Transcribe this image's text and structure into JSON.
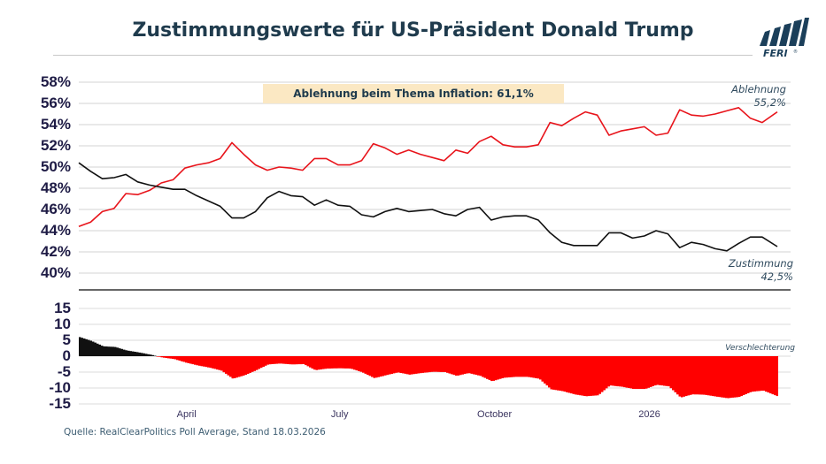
{
  "title": "Zustimmungswerte für US-Präsident Donald Trump",
  "logo": {
    "text": "FERI®",
    "color": "#1b3f5a"
  },
  "annotation": "Ablehnung beim Thema Inflation:   61,1%",
  "source": "Quelle: RealClearPolitics Poll Average, Stand 18.03.2026",
  "chart_data": [
    {
      "type": "line",
      "ylim": [
        40,
        58
      ],
      "ytick_labels": [
        "58%",
        "56%",
        "54%",
        "52%",
        "50%",
        "48%",
        "46%",
        "44%",
        "42%",
        "40%"
      ],
      "grid": true,
      "x": [
        "2025-01-27",
        "2025-02-03",
        "2025-02-10",
        "2025-02-17",
        "2025-02-24",
        "2025-03-03",
        "2025-03-10",
        "2025-03-17",
        "2025-03-24",
        "2025-03-31",
        "2025-04-07",
        "2025-04-14",
        "2025-04-21",
        "2025-04-28",
        "2025-05-05",
        "2025-05-12",
        "2025-05-19",
        "2025-05-26",
        "2025-06-02",
        "2025-06-09",
        "2025-06-16",
        "2025-06-23",
        "2025-06-30",
        "2025-07-07",
        "2025-07-14",
        "2025-07-21",
        "2025-07-28",
        "2025-08-04",
        "2025-08-11",
        "2025-08-18",
        "2025-08-25",
        "2025-09-01",
        "2025-09-08",
        "2025-09-15",
        "2025-09-22",
        "2025-09-29",
        "2025-10-06",
        "2025-10-13",
        "2025-10-20",
        "2025-10-27",
        "2025-11-03",
        "2025-11-10",
        "2025-11-17",
        "2025-11-24",
        "2025-12-01",
        "2025-12-08",
        "2025-12-15",
        "2025-12-22",
        "2025-12-29",
        "2026-01-05",
        "2026-01-12",
        "2026-01-19",
        "2026-01-26",
        "2026-02-02",
        "2026-02-09",
        "2026-02-16",
        "2026-02-23",
        "2026-03-02",
        "2026-03-09",
        "2026-03-18"
      ],
      "series": [
        {
          "name": "Ablehnung",
          "end_label": "55,2%",
          "color": "#e8141b",
          "values": [
            44.4,
            44.8,
            45.8,
            46.1,
            47.5,
            47.4,
            47.8,
            48.5,
            48.8,
            49.9,
            50.2,
            50.4,
            50.8,
            52.3,
            51.2,
            50.2,
            49.7,
            50.0,
            49.9,
            49.7,
            50.8,
            50.8,
            50.2,
            50.2,
            50.6,
            52.2,
            51.8,
            51.2,
            51.6,
            51.2,
            50.9,
            50.6,
            51.6,
            51.3,
            52.4,
            52.9,
            52.1,
            51.9,
            51.9,
            52.1,
            54.2,
            53.9,
            54.6,
            55.2,
            54.9,
            53.0,
            53.4,
            53.6,
            53.8,
            53.0,
            53.2,
            55.4,
            54.9,
            54.8,
            55.0,
            55.3,
            55.6,
            54.6,
            54.2,
            55.2
          ]
        },
        {
          "name": "Zustimmung",
          "end_label": "42,5%",
          "color": "#111111",
          "values": [
            50.4,
            49.6,
            48.9,
            49.0,
            49.3,
            48.6,
            48.3,
            48.1,
            47.9,
            47.9,
            47.3,
            46.8,
            46.3,
            45.2,
            45.2,
            45.8,
            47.1,
            47.7,
            47.3,
            47.2,
            46.4,
            46.9,
            46.4,
            46.3,
            45.5,
            45.3,
            45.8,
            46.1,
            45.8,
            45.9,
            46.0,
            45.6,
            45.4,
            46.0,
            46.2,
            45.0,
            45.3,
            45.4,
            45.4,
            45.0,
            43.8,
            42.9,
            42.6,
            42.6,
            42.6,
            43.8,
            43.8,
            43.3,
            43.5,
            44.0,
            43.7,
            42.4,
            42.9,
            42.7,
            42.3,
            42.1,
            42.8,
            43.4,
            43.4,
            42.5
          ]
        }
      ]
    },
    {
      "type": "bar",
      "description_label": "Verschlechterung",
      "ylim": [
        -15,
        15
      ],
      "ytick_labels": [
        "15",
        "10",
        "5",
        "0",
        "-5",
        "-10",
        "-15"
      ],
      "xtick_labels": [
        {
          "label": "April",
          "date": "2025-04-01"
        },
        {
          "label": "July",
          "date": "2025-07-01"
        },
        {
          "label": "October",
          "date": "2025-10-01"
        },
        {
          "label": "2026",
          "date": "2026-01-01"
        }
      ],
      "series": [
        {
          "values_from": "Zustimmung minus Ablehnung",
          "positive_color": "#111111",
          "negative_color": "#ff0000"
        }
      ],
      "grid": true
    }
  ]
}
